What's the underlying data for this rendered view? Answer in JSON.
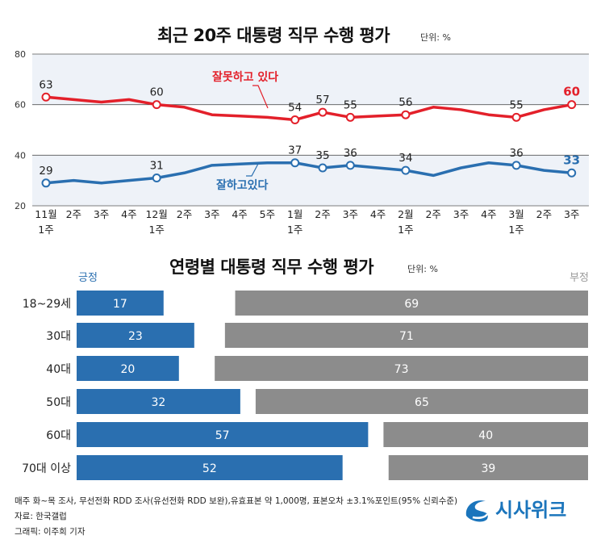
{
  "chart_data": [
    {
      "type": "line",
      "title": "최근 20주 대통령 직무 수행 평가",
      "unit": "단위: %",
      "ylim": [
        20,
        80
      ],
      "yticks": [
        20,
        40,
        60,
        80
      ],
      "x": [
        {
          "line1": "11월",
          "line2": "1주"
        },
        {
          "line1": "2주"
        },
        {
          "line1": "3주"
        },
        {
          "line1": "4주"
        },
        {
          "line1": "12월",
          "line2": "1주"
        },
        {
          "line1": "2주"
        },
        {
          "line1": "3주"
        },
        {
          "line1": "4주"
        },
        {
          "line1": "5주"
        },
        {
          "line1": "1월",
          "line2": "1주"
        },
        {
          "line1": "2주"
        },
        {
          "line1": "3주"
        },
        {
          "line1": "4주"
        },
        {
          "line1": "2월",
          "line2": "1주"
        },
        {
          "line1": "2주"
        },
        {
          "line1": "3주"
        },
        {
          "line1": "4주"
        },
        {
          "line1": "3월",
          "line2": "1주"
        },
        {
          "line1": "2주"
        },
        {
          "line1": "3주"
        }
      ],
      "series": [
        {
          "name": "잘못하고 있다",
          "color": "#e3202a",
          "values": [
            63,
            62,
            61,
            62,
            60,
            59,
            56,
            55.5,
            55,
            54,
            57,
            55,
            55.5,
            56,
            59,
            58,
            56,
            55,
            58,
            60
          ],
          "labels": {
            "0": "63",
            "4": "60",
            "9": "54",
            "10": "57",
            "11": "55",
            "13": "56",
            "17": "55",
            "19": "60"
          }
        },
        {
          "name": "잘하고있다",
          "color": "#2a6fb0",
          "values": [
            29,
            30,
            29,
            30,
            31,
            33,
            36,
            36.5,
            37,
            37,
            35,
            36,
            35,
            34,
            32,
            35,
            37,
            36,
            34,
            33
          ],
          "labels": {
            "0": "29",
            "4": "31",
            "9": "37",
            "10": "35",
            "11": "36",
            "13": "34",
            "17": "36",
            "19": "33"
          }
        }
      ]
    },
    {
      "type": "bar",
      "title": "연령별 대통령 직무 수행 평가",
      "unit": "단위: %",
      "legend": {
        "positive": "긍정",
        "negative": "부정"
      },
      "categories": [
        "18~29세",
        "30대",
        "40대",
        "50대",
        "60대",
        "70대 이상"
      ],
      "series": [
        {
          "name": "긍정",
          "color": "#2a6fb0",
          "values": [
            17,
            23,
            20,
            32,
            57,
            52
          ]
        },
        {
          "name": "부정",
          "color": "#8c8c8c",
          "values": [
            69,
            71,
            73,
            65,
            40,
            39
          ]
        }
      ]
    }
  ],
  "footer": {
    "note": "매주 화~목 조사, 무선전화 RDD 조사(유선전화 RDD 보완),유효표본 약 1,000명, 표본오차 ±3.1%포인트(95% 신뢰수준)",
    "source": "자료: 한국갤럽",
    "graphic": "그래픽: 이주희 기자"
  },
  "logo": {
    "text": "시사위크"
  }
}
